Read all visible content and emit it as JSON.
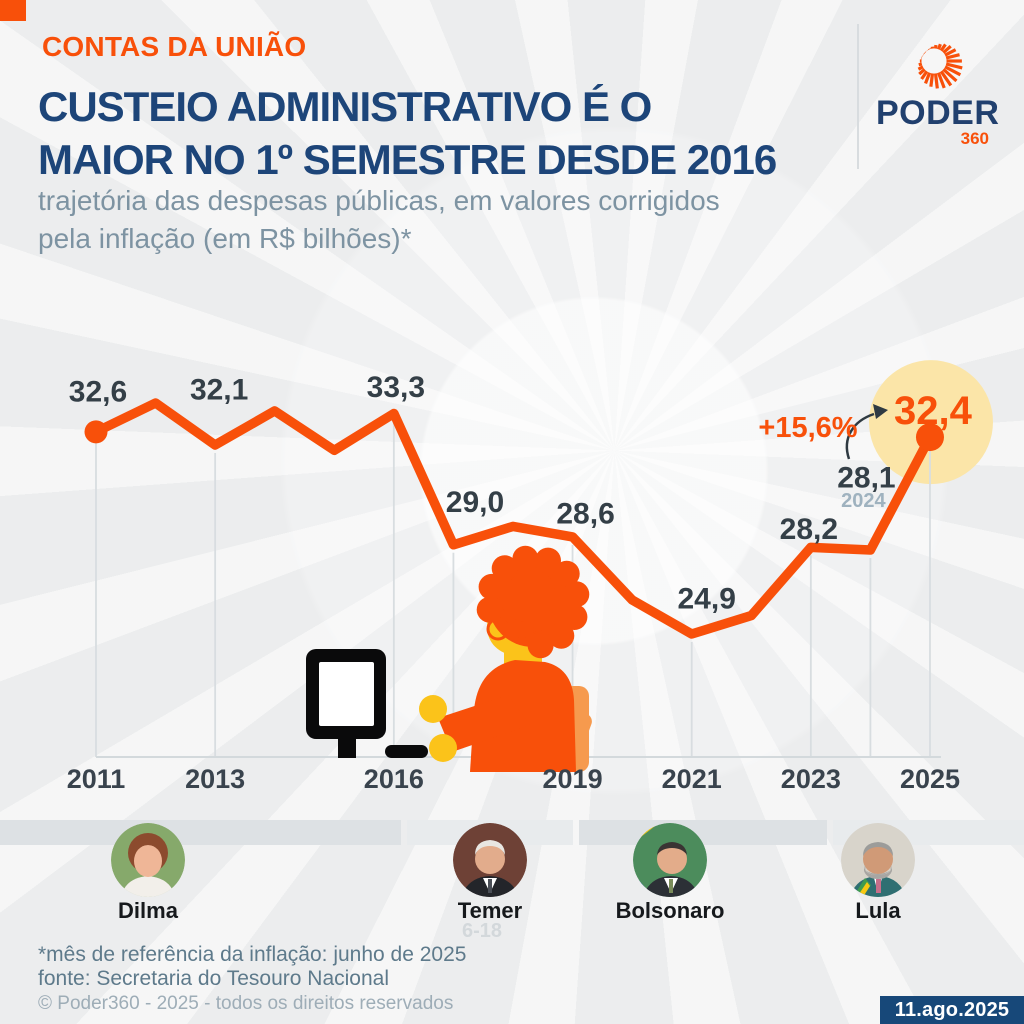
{
  "header": {
    "tag_label": "CONTAS DA UNIÃO",
    "title_lines": [
      "CUSTEIO ADMINISTRATIVO É O",
      "MAIOR NO 1º SEMESTRE DESDE 2016"
    ],
    "subtitle_lines": [
      "trajetória das despesas públicas, em valores corrigidos",
      "pela inflação (em R$ bilhões)*"
    ],
    "logo": {
      "name": "PODER",
      "number": "360"
    }
  },
  "chart_data": {
    "type": "line",
    "title": "trajetória das despesas públicas, em valores corrigidos pela inflação (em R$ bilhões)",
    "unit": "R$ bilhões",
    "xlabel": "",
    "ylabel": "",
    "x_range": [
      2011,
      2025
    ],
    "ylim": [
      24,
      34
    ],
    "grid": "vertical-leader-lines",
    "legend": null,
    "points": [
      {
        "year": 2011,
        "value": 32.6,
        "label": "32,6",
        "dot": true
      },
      {
        "year": 2012,
        "value": 33.7,
        "label": null,
        "estimated": true
      },
      {
        "year": 2013,
        "value": 32.1,
        "label": "32,1"
      },
      {
        "year": 2014,
        "value": 33.4,
        "label": null,
        "estimated": true
      },
      {
        "year": 2015,
        "value": 31.9,
        "label": null,
        "estimated": true
      },
      {
        "year": 2016,
        "value": 33.3,
        "label": "33,3"
      },
      {
        "year": 2017,
        "value": 28.3,
        "label": null,
        "estimated": true
      },
      {
        "year": 2018,
        "value": 29.0,
        "label": "29,0"
      },
      {
        "year": 2019,
        "value": 28.6,
        "label": "28,6"
      },
      {
        "year": 2020,
        "value": 26.2,
        "label": null,
        "estimated": true
      },
      {
        "year": 2021,
        "value": 24.9,
        "label": "24,9"
      },
      {
        "year": 2022,
        "value": 25.6,
        "label": null,
        "estimated": true
      },
      {
        "year": 2023,
        "value": 28.2,
        "label": "28,2"
      },
      {
        "year": 2024,
        "value": 28.1,
        "label": "28,1",
        "sublabel": "2024"
      },
      {
        "year": 2025,
        "value": 32.4,
        "label": "32,4",
        "highlight": true,
        "dot": true
      }
    ],
    "x_ticks": [
      "2011",
      "2013",
      "2016",
      "2019",
      "2021",
      "2023",
      "2025"
    ],
    "gridline_years": [
      2011,
      2013,
      2016,
      2017,
      2019,
      2021,
      2023,
      2024,
      2025
    ],
    "annotation": {
      "change_label": "+15,6%",
      "from_year": 2024,
      "to_year": 2025
    },
    "line_color": "#F8500A",
    "label_color": "#343F47",
    "highlight_circle_color": "#FBE5A8",
    "sublabel_color": "#9FB2BF"
  },
  "presidents": {
    "items": [
      {
        "name": "Dilma"
      },
      {
        "name": "Temer",
        "faint_term": "6-18"
      },
      {
        "name": "Bolsonaro"
      },
      {
        "name": "Lula"
      }
    ]
  },
  "footer": {
    "note_line1": "*mês de referência da inflação: junho de 2025",
    "note_line2": "fonte: Secretaria do Tesouro Nacional",
    "copyright": "© Poder360 - 2025 - todos os direitos reservados",
    "date_badge": "11.ago.2025"
  },
  "colors": {
    "accent_orange": "#F8500A",
    "title_navy": "#1D4579",
    "logo_navy": "#21406E",
    "subtitle_gray": "#7D93A2",
    "background": "#ECEDEE",
    "highlight_yellow": "#FBE5A8",
    "date_chip_navy": "#174879"
  }
}
